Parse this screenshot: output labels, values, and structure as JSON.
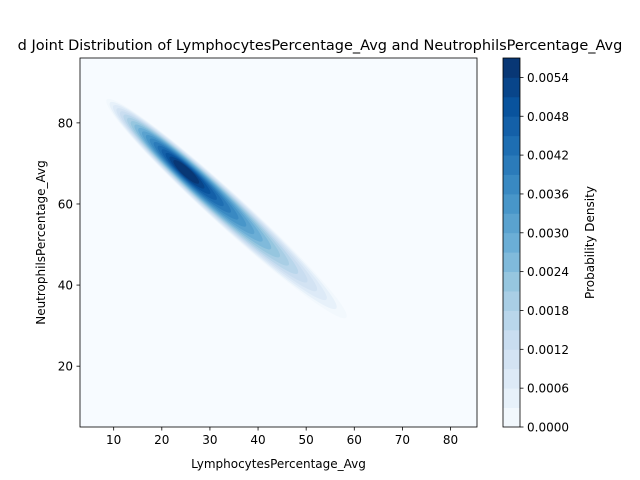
{
  "chart_data": {
    "type": "heatmap",
    "subtype": "kde-contourf",
    "title": "d Joint Distribution of LymphocytesPercentage_Avg and NeutrophilsPercentage_Avg",
    "xlabel": "LymphocytesPercentage_Avg",
    "ylabel": "NeutrophilsPercentage_Avg",
    "xlim": [
      3,
      85.5
    ],
    "ylim": [
      5,
      96
    ],
    "xticks": [
      10,
      20,
      30,
      40,
      50,
      60,
      70,
      80
    ],
    "yticks": [
      20,
      40,
      60,
      80
    ],
    "colormap": "Blues",
    "density_peak": {
      "x": 25,
      "y": 68,
      "value": 0.0056
    },
    "density_ridge": [
      [
        3,
        92
      ],
      [
        10,
        84
      ],
      [
        20,
        72
      ],
      [
        25,
        68
      ],
      [
        30,
        62
      ],
      [
        40,
        50
      ],
      [
        50,
        38
      ],
      [
        56,
        32
      ],
      [
        65,
        25
      ]
    ],
    "colorbar": {
      "label": "Probability Density",
      "min": 0.0,
      "max": 0.0057,
      "step": 0.0003,
      "ticks": [
        "0.0000",
        "0.0006",
        "0.0012",
        "0.0018",
        "0.0024",
        "0.0030",
        "0.0036",
        "0.0042",
        "0.0048",
        "0.0054"
      ]
    }
  }
}
